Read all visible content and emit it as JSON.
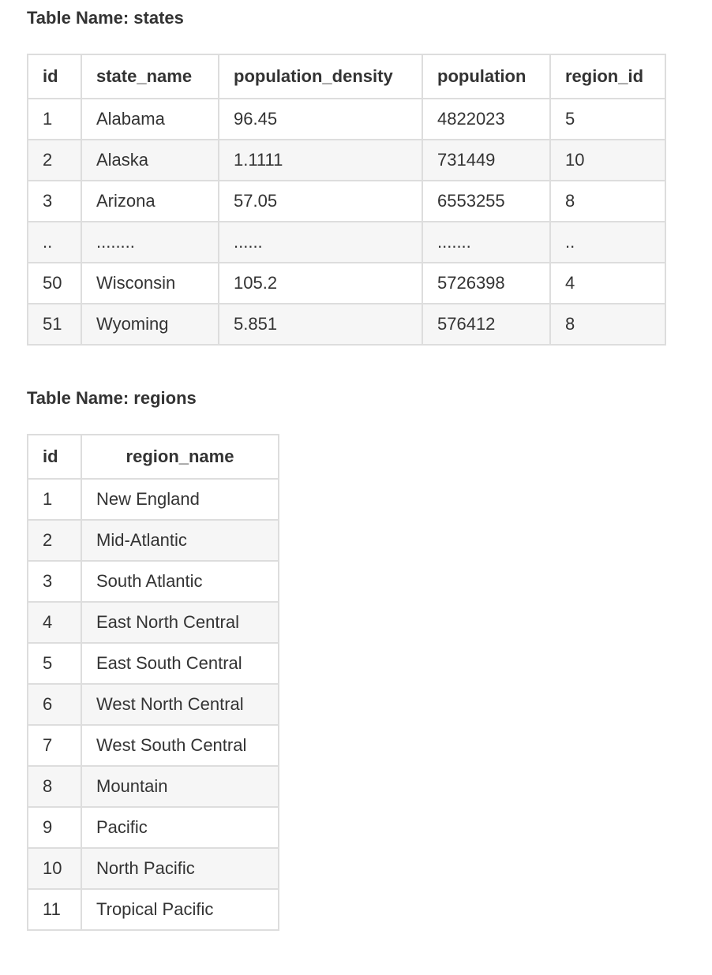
{
  "states": {
    "caption": "Table Name: states",
    "columns": [
      "id",
      "state_name",
      "population_density",
      "population",
      "region_id"
    ],
    "rows": [
      [
        "1",
        "Alabama",
        "96.45",
        "4822023",
        "5"
      ],
      [
        "2",
        "Alaska",
        "1.1111",
        "731449",
        "10"
      ],
      [
        "3",
        "Arizona",
        "57.05",
        "6553255",
        "8"
      ],
      [
        "..",
        "........",
        "......",
        ".......",
        ".."
      ],
      [
        "50",
        "Wisconsin",
        "105.2",
        "5726398",
        "4"
      ],
      [
        "51",
        "Wyoming",
        "5.851",
        "576412",
        "8"
      ]
    ]
  },
  "regions": {
    "caption": "Table Name: regions",
    "columns": [
      "id",
      "region_name"
    ],
    "rows": [
      [
        "1",
        "New England"
      ],
      [
        "2",
        "Mid-Atlantic"
      ],
      [
        "3",
        "South Atlantic"
      ],
      [
        "4",
        "East North Central"
      ],
      [
        "5",
        "East South Central"
      ],
      [
        "6",
        "West North Central"
      ],
      [
        "7",
        "West South Central"
      ],
      [
        "8",
        "Mountain"
      ],
      [
        "9",
        "Pacific"
      ],
      [
        "10",
        "North Pacific"
      ],
      [
        "11",
        "Tropical Pacific"
      ]
    ]
  }
}
